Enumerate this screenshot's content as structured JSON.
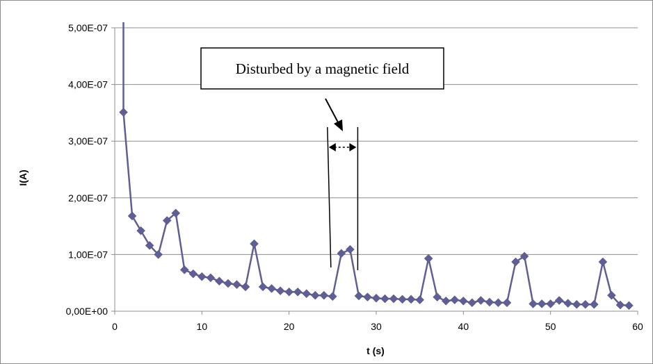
{
  "chart_data": {
    "type": "line",
    "title": "",
    "xlabel": "t (s)",
    "ylabel": "I(A)",
    "xlim": [
      0,
      60
    ],
    "ylim": [
      0,
      5e-07
    ],
    "x_ticks": [
      "0",
      "10",
      "20",
      "30",
      "40",
      "50",
      "60"
    ],
    "y_ticks": [
      "0,00E+00",
      "1,00E-07",
      "2,00E-07",
      "3,00E-07",
      "4,00E-07",
      "5,00E-07"
    ],
    "grid": "horizontal",
    "legend": "none",
    "series_color": "#5f5f96",
    "series": [
      {
        "x": [
          1,
          1,
          2,
          3,
          4,
          5,
          6,
          7,
          8,
          9,
          10,
          11,
          12,
          13,
          14,
          15,
          16,
          17,
          18,
          19,
          20,
          21,
          22,
          23,
          24,
          25,
          26,
          27,
          28,
          29,
          30,
          31,
          32,
          33,
          34,
          35,
          36,
          37,
          38,
          39,
          40,
          41,
          42,
          43,
          44,
          45,
          46,
          47,
          48,
          49,
          50,
          51,
          52,
          53,
          54,
          55,
          56,
          57,
          58,
          59
        ],
        "y": [
          5.1e-07,
          3.51e-07,
          1.68e-07,
          1.42e-07,
          1.16e-07,
          1e-07,
          1.6e-07,
          1.73e-07,
          7.3e-08,
          6.6e-08,
          6.1e-08,
          5.9e-08,
          5.3e-08,
          4.9e-08,
          4.7e-08,
          4.3e-08,
          1.19e-07,
          4.3e-08,
          4e-08,
          3.6e-08,
          3.4e-08,
          3.4e-08,
          3.1e-08,
          2.8e-08,
          2.8e-08,
          2.6e-08,
          1.02e-07,
          1.09e-07,
          2.7e-08,
          2.5e-08,
          2.3e-08,
          2.2e-08,
          2.2e-08,
          2.1e-08,
          2.1e-08,
          2e-08,
          9.3e-08,
          2.5e-08,
          1.8e-08,
          2e-08,
          1.8e-08,
          1.5e-08,
          1.9e-08,
          1.6e-08,
          1.5e-08,
          1.5e-08,
          8.7e-08,
          9.7e-08,
          1.3e-08,
          1.3e-08,
          1.3e-08,
          1.9e-08,
          1.4e-08,
          1.2e-08,
          1.2e-08,
          1.2e-08,
          8.7e-08,
          2.8e-08,
          1.1e-08,
          1e-08
        ],
        "markers": [
          false,
          true,
          true,
          true,
          true,
          true,
          true,
          true,
          true,
          true,
          true,
          true,
          true,
          true,
          true,
          true,
          true,
          true,
          true,
          true,
          true,
          true,
          true,
          true,
          true,
          true,
          true,
          true,
          true,
          true,
          true,
          true,
          true,
          true,
          true,
          true,
          true,
          true,
          true,
          true,
          true,
          true,
          true,
          true,
          true,
          true,
          true,
          true,
          true,
          true,
          true,
          true,
          true,
          true,
          true,
          true,
          true,
          true,
          true,
          true
        ]
      }
    ],
    "annotations": [
      {
        "text": "Disturbed by a magnetic field",
        "interval": [
          24.8,
          27.8
        ]
      }
    ]
  }
}
